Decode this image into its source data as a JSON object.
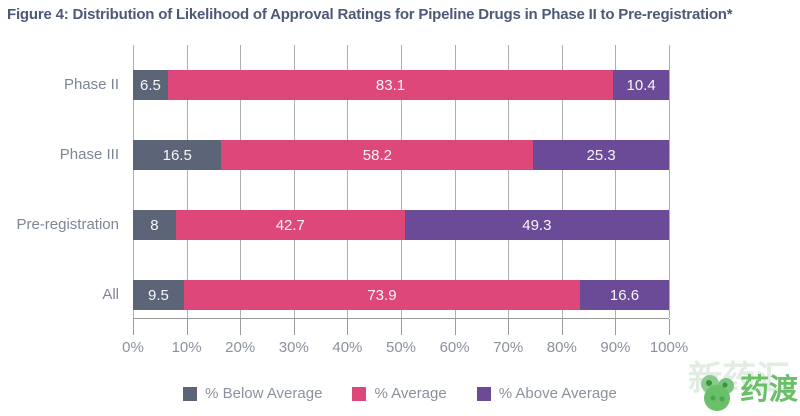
{
  "chart_data": {
    "type": "bar",
    "orientation": "horizontal",
    "stacked": true,
    "title": "Figure 4: Distribution of Likelihood of Approval Ratings for Pipeline Drugs in Phase II to Pre-registration*",
    "categories": [
      "Phase II",
      "Phase III",
      "Pre-registration",
      "All"
    ],
    "series": [
      {
        "name": "% Below Average",
        "color": "#5b6577",
        "values": [
          6.5,
          16.5,
          8,
          9.5
        ]
      },
      {
        "name": "% Average",
        "color": "#dd4779",
        "values": [
          83.1,
          58.2,
          42.7,
          73.9
        ]
      },
      {
        "name": "% Above Average",
        "color": "#6b4b97",
        "values": [
          10.4,
          25.3,
          49.3,
          16.6
        ]
      }
    ],
    "xlim": [
      0,
      100
    ],
    "x_ticks": [
      "0%",
      "10%",
      "20%",
      "30%",
      "40%",
      "50%",
      "60%",
      "70%",
      "80%",
      "90%",
      "100%"
    ],
    "grid": true,
    "legend_position": "bottom",
    "value_labels_shown": true
  },
  "colors": {
    "title": "#4d5977",
    "category_label": "#7d8597",
    "tick_label": "#8b919e",
    "gridline": "#aeaeae",
    "bar_value_text": "#f7f7f7"
  },
  "watermark": {
    "background_text": "新药汇",
    "brand_text": "药渡",
    "logo_color": "#6abf69"
  }
}
